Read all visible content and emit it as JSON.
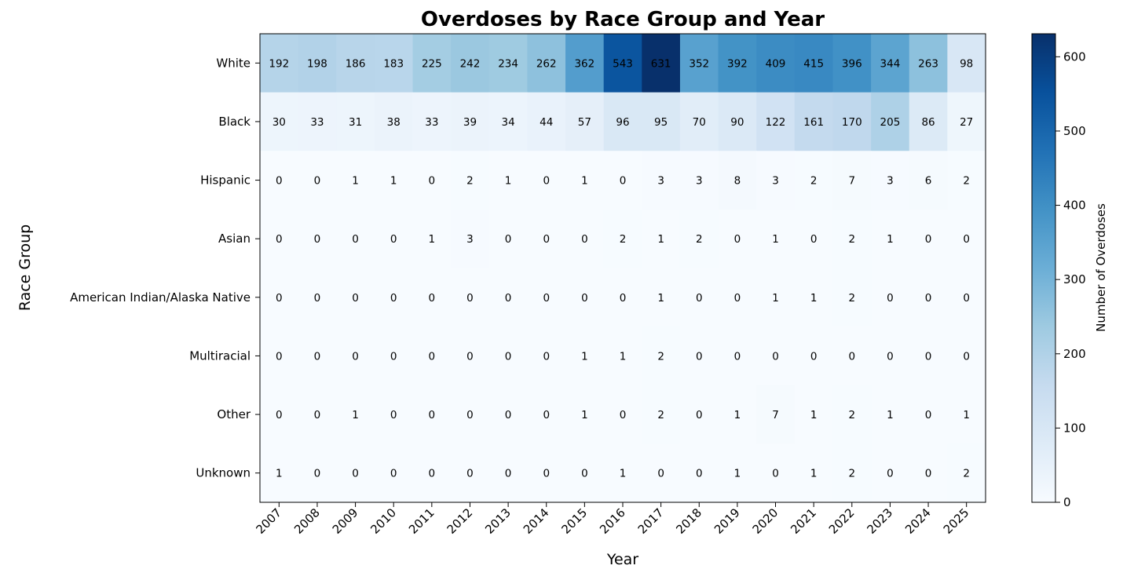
{
  "chart_data": {
    "type": "heatmap",
    "title": "Overdoses by Race Group and Year",
    "xlabel": "Year",
    "ylabel": "Race Group",
    "x_categories": [
      "2007",
      "2008",
      "2009",
      "2010",
      "2011",
      "2012",
      "2013",
      "2014",
      "2015",
      "2016",
      "2017",
      "2018",
      "2019",
      "2020",
      "2021",
      "2022",
      "2023",
      "2024",
      "2025"
    ],
    "y_categories": [
      "White",
      "Black",
      "Hispanic",
      "Asian",
      "American Indian/Alaska Native",
      "Multiracial",
      "Other",
      "Unknown"
    ],
    "values": [
      [
        192,
        198,
        186,
        183,
        225,
        242,
        234,
        262,
        362,
        543,
        631,
        352,
        392,
        409,
        415,
        396,
        344,
        263,
        98
      ],
      [
        30,
        33,
        31,
        38,
        33,
        39,
        34,
        44,
        57,
        96,
        95,
        70,
        90,
        122,
        161,
        170,
        205,
        86,
        27
      ],
      [
        0,
        0,
        1,
        1,
        0,
        2,
        1,
        0,
        1,
        0,
        3,
        3,
        8,
        3,
        2,
        7,
        3,
        6,
        2
      ],
      [
        0,
        0,
        0,
        0,
        1,
        3,
        0,
        0,
        0,
        2,
        1,
        2,
        0,
        1,
        0,
        2,
        1,
        0,
        0
      ],
      [
        0,
        0,
        0,
        0,
        0,
        0,
        0,
        0,
        0,
        0,
        1,
        0,
        0,
        1,
        1,
        2,
        0,
        0,
        0
      ],
      [
        0,
        0,
        0,
        0,
        0,
        0,
        0,
        0,
        1,
        1,
        2,
        0,
        0,
        0,
        0,
        0,
        0,
        0,
        0
      ],
      [
        0,
        0,
        1,
        0,
        0,
        0,
        0,
        0,
        1,
        0,
        2,
        0,
        1,
        7,
        1,
        2,
        1,
        0,
        1
      ],
      [
        1,
        0,
        0,
        0,
        0,
        0,
        0,
        0,
        0,
        1,
        0,
        0,
        1,
        0,
        1,
        2,
        0,
        0,
        2
      ]
    ],
    "colorbar": {
      "label": "Number of Overdoses",
      "min": 0,
      "max": 631,
      "ticks": [
        0,
        100,
        200,
        300,
        400,
        500,
        600
      ],
      "colormap": "Blues"
    },
    "grid": false,
    "legend": "none"
  }
}
